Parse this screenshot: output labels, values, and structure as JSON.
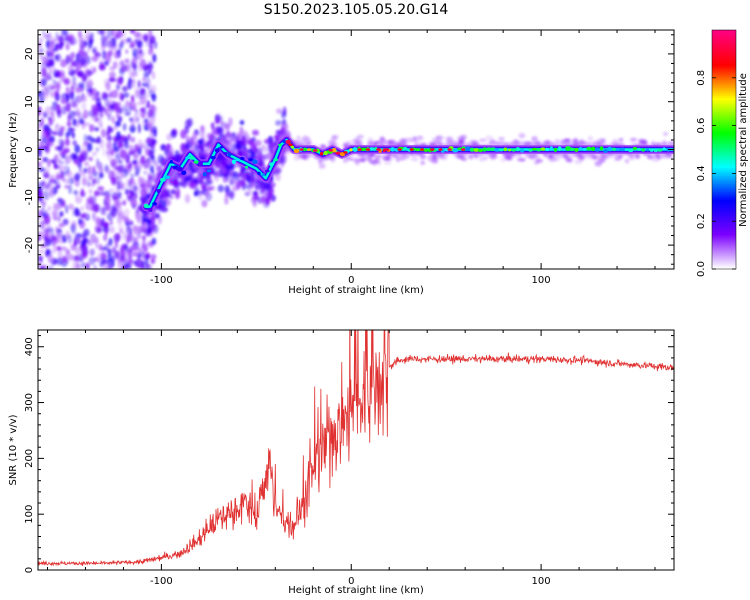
{
  "title": "S150.2023.105.05.20.G14",
  "chart_data": [
    {
      "type": "heatmap",
      "xlabel": "Height of straight line (km)",
      "ylabel": "Frequency (Hz)",
      "xlim": [
        -165,
        170
      ],
      "ylim": [
        -25,
        25
      ],
      "xticks": [
        -100,
        0,
        100
      ],
      "yticks": [
        -20,
        -10,
        0,
        10,
        20
      ],
      "colorbar": {
        "label": "Normalized spectral amplitude",
        "range": [
          0.0,
          1.0
        ],
        "ticks": [
          0.0,
          0.2,
          0.4,
          0.6,
          0.8
        ],
        "colormap": [
          "#ffffff",
          "#7b00ff",
          "#0000ff",
          "#00ffff",
          "#00ff00",
          "#ffff00",
          "#ff0000",
          "#ff0080"
        ]
      },
      "ridge": {
        "x": [
          -106,
          -100,
          -95,
          -90,
          -85,
          -80,
          -75,
          -70,
          -65,
          -60,
          -55,
          -50,
          -45,
          -40,
          -37,
          -34,
          -30,
          -25,
          -20,
          -15,
          -10,
          -5,
          0,
          10,
          20,
          40,
          60,
          80,
          100,
          120,
          140,
          160,
          170
        ],
        "y": [
          -12,
          -7,
          -3,
          -4,
          -1,
          -3,
          -3,
          1,
          -1,
          -2,
          -3,
          -4,
          -6,
          -2,
          1,
          2,
          0,
          0,
          0,
          -1,
          0,
          -1,
          0,
          0,
          0,
          0,
          0,
          0,
          0,
          0,
          0,
          0,
          0
        ]
      }
    },
    {
      "type": "line",
      "xlabel": "Height of straight line (km)",
      "ylabel": "SNR (10 * v/v)",
      "xlim": [
        -165,
        170
      ],
      "ylim": [
        0,
        430
      ],
      "xticks": [
        -100,
        0,
        100
      ],
      "yticks": [
        0,
        100,
        200,
        300,
        400
      ],
      "series": [
        {
          "color": "#e03030",
          "x": [
            -165,
            -150,
            -130,
            -110,
            -100,
            -90,
            -80,
            -75,
            -70,
            -65,
            -60,
            -55,
            -50,
            -45,
            -43,
            -40,
            -35,
            -30,
            -25,
            -20,
            -15,
            -10,
            -5,
            0,
            5,
            10,
            15,
            20,
            25,
            30,
            40,
            60,
            80,
            100,
            120,
            140,
            160,
            170
          ],
          "y": [
            12,
            12,
            12,
            15,
            22,
            30,
            55,
            75,
            90,
            100,
            110,
            120,
            95,
            170,
            200,
            110,
            85,
            80,
            120,
            180,
            210,
            250,
            260,
            280,
            300,
            320,
            345,
            365,
            375,
            378,
            378,
            378,
            378,
            378,
            376,
            370,
            365,
            362
          ]
        }
      ]
    }
  ]
}
